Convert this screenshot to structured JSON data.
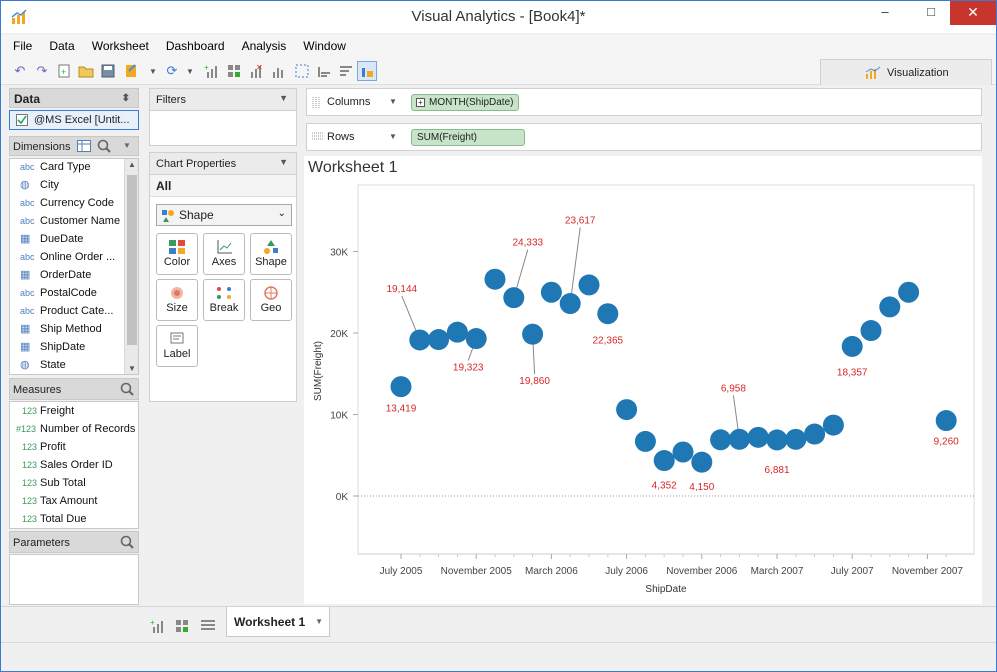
{
  "window": {
    "title": "Visual Analytics - [Book4]*",
    "minimize": "–",
    "maximize": "□",
    "close": "✕"
  },
  "menu": [
    "File",
    "Data",
    "Worksheet",
    "Dashboard",
    "Analysis",
    "Window"
  ],
  "visualization_tab": "Visualization",
  "data_panel": {
    "title": "Data",
    "datasource": "@MS Excel [Untit..."
  },
  "dimensions": {
    "title": "Dimensions",
    "items": [
      {
        "label": "Card Type",
        "icon": "abc"
      },
      {
        "label": "City",
        "icon": "globe"
      },
      {
        "label": "Currency Code",
        "icon": "abc"
      },
      {
        "label": "Customer Name",
        "icon": "abc"
      },
      {
        "label": "DueDate",
        "icon": "calendar"
      },
      {
        "label": "Online Order ...",
        "icon": "abc"
      },
      {
        "label": "OrderDate",
        "icon": "calendar"
      },
      {
        "label": "PostalCode",
        "icon": "abc"
      },
      {
        "label": "Product Cate...",
        "icon": "abc"
      },
      {
        "label": "Ship Method",
        "icon": "calendar"
      },
      {
        "label": "ShipDate",
        "icon": "calendar"
      },
      {
        "label": "State",
        "icon": "globe"
      }
    ]
  },
  "measures": {
    "title": "Measures",
    "items": [
      {
        "label": "Freight",
        "icon": "123"
      },
      {
        "label": "Number of Records",
        "icon": "#123"
      },
      {
        "label": "Profit",
        "icon": "123"
      },
      {
        "label": "Sales Order ID",
        "icon": "123"
      },
      {
        "label": "Sub Total",
        "icon": "123"
      },
      {
        "label": "Tax Amount",
        "icon": "123"
      },
      {
        "label": "Total Due",
        "icon": "123"
      }
    ]
  },
  "parameters": {
    "title": "Parameters"
  },
  "filters": {
    "title": "Filters"
  },
  "chart_properties": {
    "title": "Chart Properties",
    "section": "All",
    "mark_type": "Shape",
    "buttons": [
      "Color",
      "Axes",
      "Shape",
      "Size",
      "Break",
      "Geo",
      "Label"
    ]
  },
  "shelves": {
    "columns_label": "Columns",
    "columns_pill": "MONTH(ShipDate)",
    "rows_label": "Rows",
    "rows_pill": "SUM(Freight)"
  },
  "worksheet": {
    "title": "Worksheet 1",
    "tab_label": "Worksheet 1"
  },
  "colors": {
    "marker": "#1f77b4",
    "label": "#d62728",
    "pill_bg": "#c7e3c8",
    "close_bg": "#c7352c"
  },
  "chart_data": {
    "type": "scatter",
    "xlabel": "ShipDate",
    "ylabel": "SUM(Freight)",
    "ylim": [
      0,
      35000
    ],
    "y_ticks": [
      "0K",
      "10K",
      "20K",
      "30K"
    ],
    "x_ticks": [
      "July 2005",
      "November 2005",
      "March 2006",
      "July 2006",
      "November 2006",
      "March 2007",
      "July 2007",
      "November 2007"
    ],
    "x": [
      "2005-07",
      "2005-08",
      "2005-09",
      "2005-10",
      "2005-11",
      "2005-12",
      "2006-01",
      "2006-02",
      "2006-03",
      "2006-04",
      "2006-05",
      "2006-06",
      "2006-07",
      "2006-08",
      "2006-09",
      "2006-10",
      "2006-11",
      "2006-12",
      "2007-01",
      "2007-02",
      "2007-03",
      "2007-04",
      "2007-05",
      "2007-06",
      "2007-07",
      "2007-08",
      "2007-09",
      "2007-10",
      "2007-11",
      "2007-12"
    ],
    "values": [
      13419,
      19144,
      19200,
      20100,
      19323,
      26600,
      24333,
      19860,
      25000,
      23617,
      25900,
      22365,
      10600,
      6700,
      4352,
      5400,
      4150,
      6900,
      6958,
      7200,
      6881,
      6950,
      7600,
      8700,
      18357,
      20300,
      23200,
      25000,
      null,
      9260
    ],
    "data_labels": [
      {
        "index": 0,
        "text": "13,419"
      },
      {
        "index": 1,
        "text": "19,144"
      },
      {
        "index": 4,
        "text": "19,323"
      },
      {
        "index": 6,
        "text": "24,333"
      },
      {
        "index": 7,
        "text": "19,860"
      },
      {
        "index": 9,
        "text": "23,617"
      },
      {
        "index": 11,
        "text": "22,365"
      },
      {
        "index": 14,
        "text": "4,352"
      },
      {
        "index": 16,
        "text": "4,150"
      },
      {
        "index": 18,
        "text": "6,958"
      },
      {
        "index": 20,
        "text": "6,881"
      },
      {
        "index": 24,
        "text": "18,357"
      },
      {
        "index": 29,
        "text": "9,260"
      }
    ]
  }
}
